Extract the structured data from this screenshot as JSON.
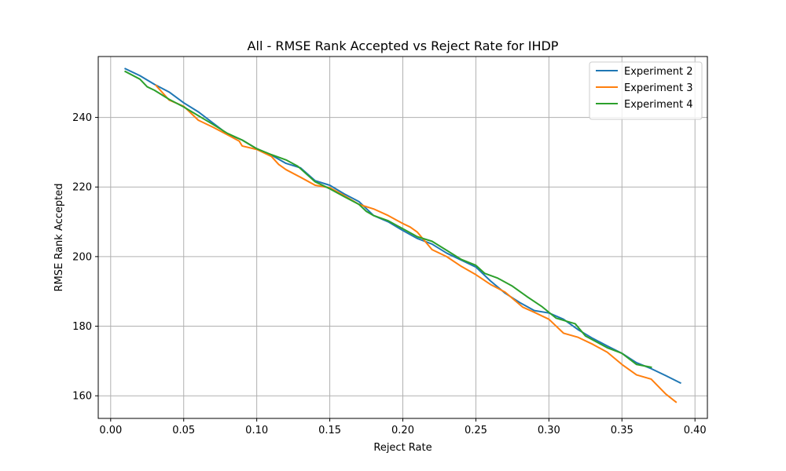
{
  "chart_data": {
    "type": "line",
    "title": "All - RMSE Rank Accepted vs Reject Rate for IHDP",
    "xlabel": "Reject Rate",
    "ylabel": "RMSE Rank Accepted",
    "xlim": [
      -0.0085,
      0.4085
    ],
    "ylim": [
      153.5,
      257.5
    ],
    "xticks": [
      0.0,
      0.05,
      0.1,
      0.15,
      0.2,
      0.25,
      0.3,
      0.35,
      0.4
    ],
    "xtick_labels": [
      "0.00",
      "0.05",
      "0.10",
      "0.15",
      "0.20",
      "0.25",
      "0.30",
      "0.35",
      "0.40"
    ],
    "yticks": [
      160,
      180,
      200,
      220,
      240
    ],
    "ytick_labels": [
      "160",
      "180",
      "200",
      "220",
      "240"
    ],
    "grid": true,
    "legend": "top-right",
    "series": [
      {
        "name": "Experiment 2",
        "color": "#1f77b4",
        "x": [
          0.01,
          0.02,
          0.03,
          0.04,
          0.05,
          0.06,
          0.07,
          0.08,
          0.09,
          0.1,
          0.11,
          0.12,
          0.13,
          0.14,
          0.15,
          0.16,
          0.17,
          0.18,
          0.19,
          0.2,
          0.21,
          0.22,
          0.23,
          0.24,
          0.25,
          0.26,
          0.27,
          0.28,
          0.29,
          0.3,
          0.31,
          0.32,
          0.33,
          0.34,
          0.35,
          0.36,
          0.37,
          0.38,
          0.39
        ],
        "y": [
          254.0,
          252.0,
          249.5,
          247.3,
          244.2,
          241.6,
          238.4,
          235.2,
          233.5,
          231.0,
          229.2,
          226.8,
          225.5,
          221.8,
          220.5,
          218.0,
          215.8,
          211.8,
          210.0,
          207.5,
          205.2,
          203.6,
          201.0,
          199.0,
          197.0,
          193.0,
          189.5,
          186.8,
          184.5,
          183.8,
          182.0,
          179.0,
          176.5,
          174.3,
          172.2,
          169.5,
          167.8,
          165.8,
          163.7
        ]
      },
      {
        "name": "Experiment 3",
        "color": "#ff7f0e",
        "x": [
          0.031,
          0.04,
          0.05,
          0.06,
          0.07,
          0.08,
          0.088,
          0.09,
          0.1,
          0.11,
          0.115,
          0.12,
          0.13,
          0.14,
          0.15,
          0.16,
          0.17,
          0.18,
          0.19,
          0.2,
          0.205,
          0.21,
          0.22,
          0.23,
          0.24,
          0.25,
          0.26,
          0.27,
          0.282,
          0.29,
          0.3,
          0.31,
          0.32,
          0.33,
          0.34,
          0.35,
          0.36,
          0.37,
          0.38,
          0.387
        ],
        "y": [
          249.2,
          245.0,
          243.2,
          239.2,
          237.2,
          235.0,
          233.2,
          231.8,
          230.8,
          228.8,
          226.5,
          225.0,
          222.8,
          220.5,
          219.8,
          217.5,
          215.0,
          213.7,
          211.8,
          209.5,
          208.5,
          207.0,
          202.0,
          200.0,
          197.2,
          194.8,
          192.0,
          189.8,
          185.5,
          184.0,
          182.0,
          178.0,
          176.8,
          174.8,
          172.5,
          169.0,
          166.0,
          164.8,
          160.5,
          158.2
        ]
      },
      {
        "name": "Experiment 4",
        "color": "#2ca02c",
        "x": [
          0.01,
          0.02,
          0.025,
          0.03,
          0.04,
          0.05,
          0.06,
          0.07,
          0.08,
          0.09,
          0.1,
          0.11,
          0.12,
          0.128,
          0.14,
          0.15,
          0.16,
          0.17,
          0.175,
          0.18,
          0.19,
          0.2,
          0.21,
          0.22,
          0.23,
          0.24,
          0.25,
          0.256,
          0.265,
          0.275,
          0.285,
          0.295,
          0.305,
          0.318,
          0.325,
          0.34,
          0.35,
          0.36,
          0.37
        ],
        "y": [
          253.2,
          251.0,
          248.8,
          247.8,
          245.2,
          243.0,
          240.5,
          238.0,
          235.4,
          233.5,
          231.0,
          229.3,
          227.8,
          226.0,
          221.5,
          219.5,
          217.2,
          215.0,
          213.0,
          211.8,
          210.3,
          208.0,
          205.7,
          204.4,
          201.8,
          199.2,
          197.5,
          195.2,
          193.8,
          191.5,
          188.5,
          185.7,
          182.3,
          180.7,
          177.2,
          173.8,
          172.2,
          169.0,
          168.2
        ]
      }
    ]
  }
}
